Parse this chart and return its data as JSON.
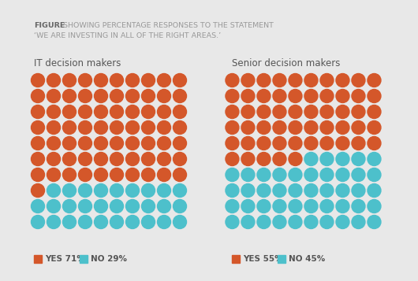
{
  "background_color": "#e8e8e8",
  "orange_color": "#d4572a",
  "teal_color": "#4dc0cb",
  "title_bold": "FIGURE",
  "title_rest": " SHOWING PERCENTAGE RESPONSES TO THE STATEMENT",
  "title_line2": "‘WE ARE INVESTING IN ALL OF THE RIGHT AREAS.’",
  "title_fontsize": 6.8,
  "left_label": "IT decision makers",
  "right_label": "Senior decision makers",
  "label_fontsize": 8.5,
  "it_yes_pct": 71,
  "it_no_pct": 29,
  "senior_yes_pct": 55,
  "senior_no_pct": 45,
  "legend_fontsize": 7.5,
  "cols": 10,
  "rows": 10,
  "figwidth": 5.3,
  "figheight": 3.57,
  "dpi": 100
}
